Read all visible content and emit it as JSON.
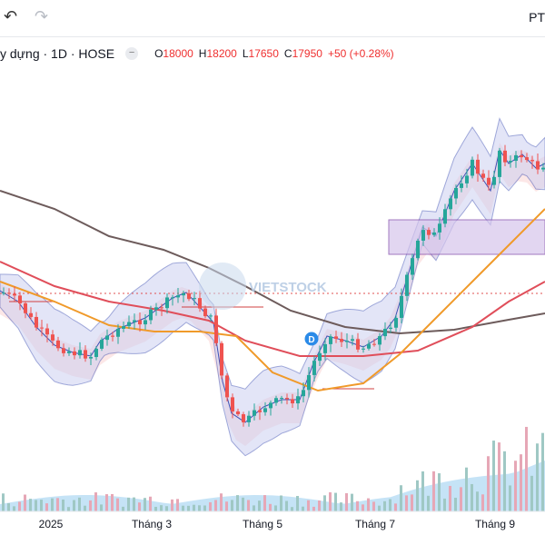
{
  "toolbar": {
    "undo_icon": "undo-arrow-icon",
    "redo_icon": "redo-arrow-icon",
    "right_label": "PT"
  },
  "legend": {
    "symbol": "y dựng · 1D · HOSE",
    "collapse_icon": "minus-icon",
    "o_label": "O",
    "o_value": "18000",
    "h_label": "H",
    "h_value": "18200",
    "l_label": "L",
    "l_value": "17650",
    "c_label": "C",
    "c_value": "17950",
    "change": "+50 (+0.28%)"
  },
  "watermark": "VIETSTOCK",
  "dividend_marker": "D",
  "colors": {
    "up": "#26a69a",
    "down": "#ef5350",
    "bb_fill": "#c9ccf0",
    "bb_line": "#3f51b5",
    "ma_long": "#6d5b5b",
    "ma_mid": "#e04e5a",
    "ma_short": "#f09a2a",
    "zone_fill": "#d7c6ec",
    "zone_border": "#7b3fa6",
    "price_line": "#e05050"
  },
  "chart_data": {
    "type": "candlestick",
    "x_tick_labels": [
      "2025",
      "Tháng 3",
      "Tháng 5",
      "Tháng 7",
      "Tháng 9"
    ],
    "last_bar": {
      "open": 18000,
      "high": 18200,
      "low": 17650,
      "close": 17950,
      "change": 50,
      "change_pct": 0.28
    },
    "series": [
      {
        "indicator": "Bollinger Bands",
        "style": "shaded band"
      },
      {
        "indicator": "Moving average (long)",
        "color": "#6d5b5b"
      },
      {
        "indicator": "Moving average (mid)",
        "color": "#e04e5a"
      },
      {
        "indicator": "Moving average (short)",
        "color": "#f09a2a"
      },
      {
        "indicator": "Volume",
        "style": "columns"
      }
    ],
    "grid": false,
    "legend_position": "top-left"
  }
}
